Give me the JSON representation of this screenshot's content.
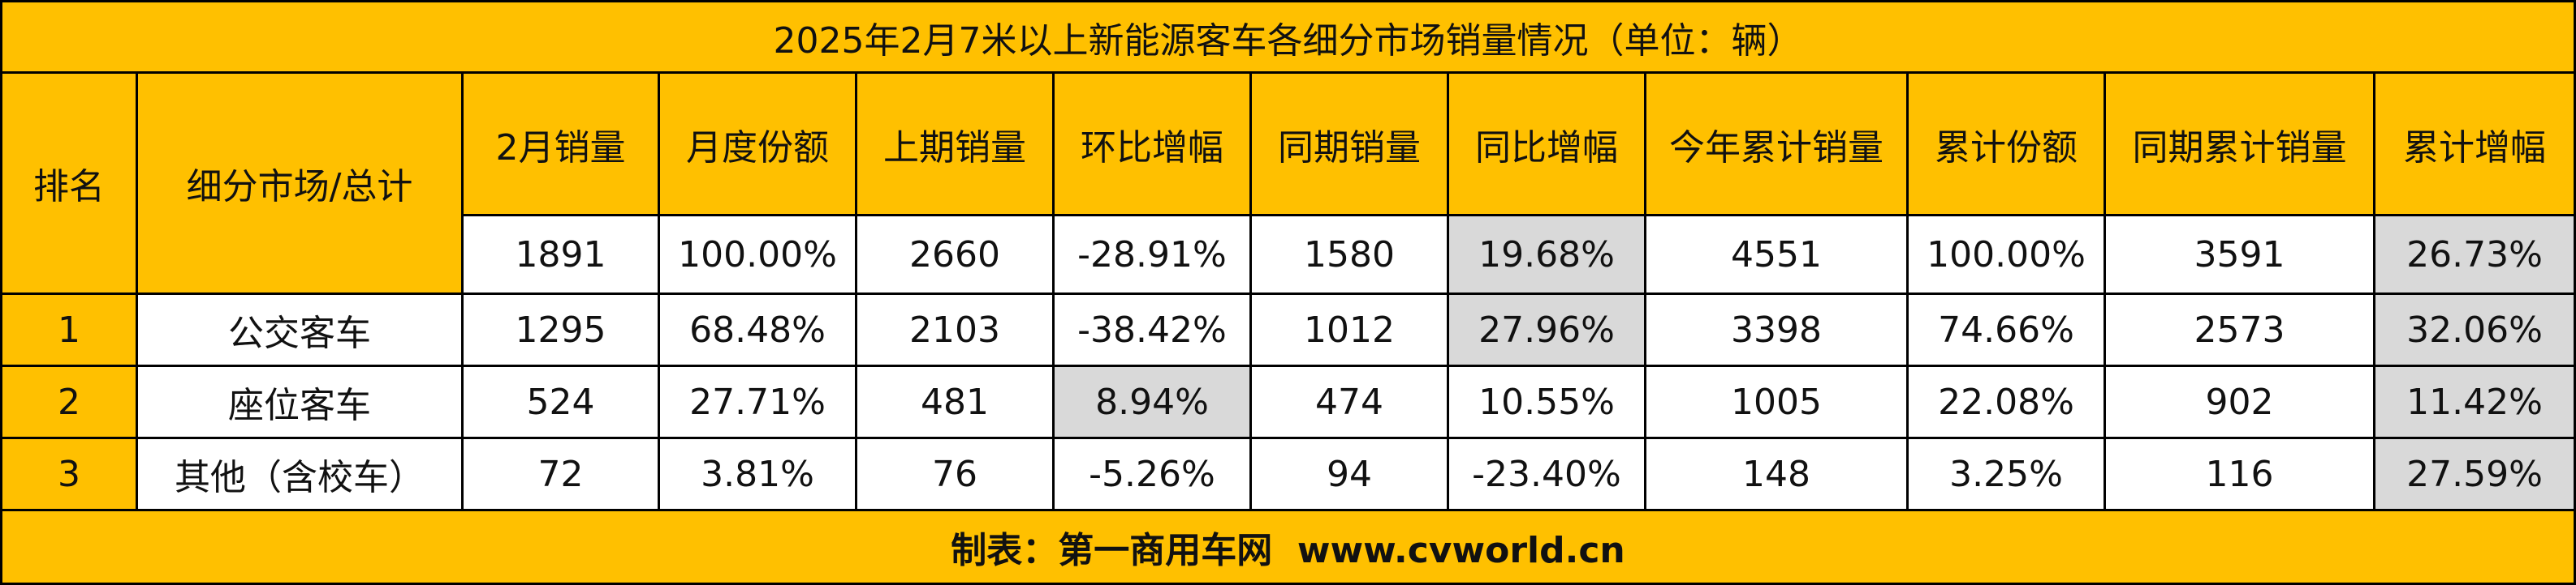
{
  "title": "2025年2月7米以上新能源客车各细分市场销量情况（单位：辆）",
  "table": {
    "headers": [
      "排名",
      "细分市场/总计",
      "2月销量",
      "月度份额",
      "上期销量",
      "环比增幅",
      "同期销量",
      "同比增幅",
      "今年累计销量",
      "累计份额",
      "同期累计销量",
      "累计增幅"
    ],
    "total": [
      "1891",
      "100.00%",
      "2660",
      "-28.91%",
      "1580",
      "19.68%",
      "4551",
      "100.00%",
      "3591",
      "26.73%"
    ],
    "rows": [
      [
        "1",
        "公交客车",
        "1295",
        "68.48%",
        "2103",
        "-38.42%",
        "1012",
        "27.96%",
        "3398",
        "74.66%",
        "2573",
        "32.06%"
      ],
      [
        "2",
        "座位客车",
        "524",
        "27.71%",
        "481",
        "8.94%",
        "474",
        "10.55%",
        "1005",
        "22.08%",
        "902",
        "11.42%"
      ],
      [
        "3",
        "其他（含校车）",
        "72",
        "3.81%",
        "76",
        "-5.26%",
        "94",
        "-23.40%",
        "148",
        "3.25%",
        "116",
        "27.59%"
      ]
    ]
  },
  "footer": "制表：第一商用车网  www.cvworld.cn"
}
